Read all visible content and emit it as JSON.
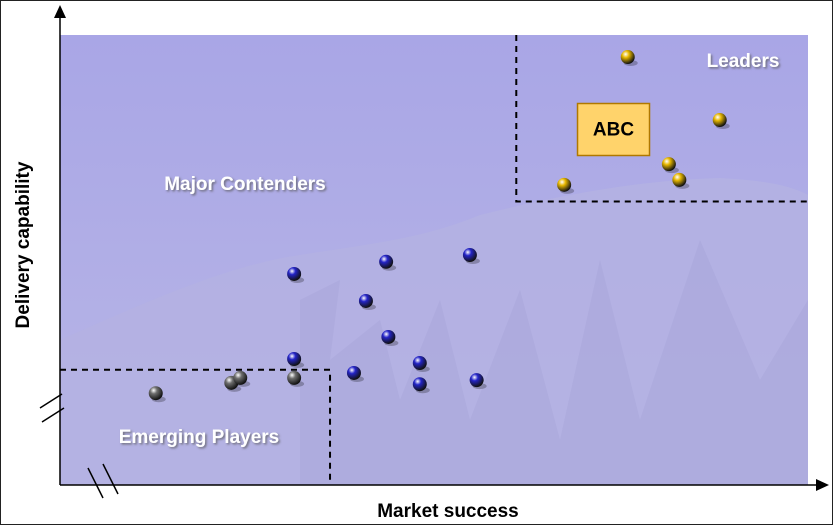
{
  "chart_data": {
    "type": "scatter",
    "xlabel": "Market success",
    "ylabel": "Delivery capability",
    "xlim": [
      0,
      100
    ],
    "ylim": [
      0,
      100
    ],
    "series": [
      {
        "name": "Leaders",
        "color": "#e8b800",
        "xrange": [
          61,
          100
        ],
        "yrange": [
          63,
          100
        ],
        "x": [
          75.9,
          88.2,
          81.4,
          82.8,
          67.4
        ],
        "values": [
          95.1,
          81.1,
          71.3,
          67.8,
          66.7
        ]
      },
      {
        "name": "Major Contenders",
        "color": "#2424c8",
        "x": [
          31.3,
          43.6,
          54.8,
          40.9,
          43.9,
          31.3,
          39.3,
          48.1,
          48.1,
          55.7
        ],
        "values": [
          46.9,
          49.6,
          51.1,
          40.9,
          32.9,
          28.0,
          24.9,
          27.1,
          22.4,
          23.3
        ]
      },
      {
        "name": "Emerging Players",
        "color": "#6e6e6e",
        "xrange": [
          0,
          36.1
        ],
        "yrange": [
          0,
          25.6
        ],
        "x": [
          12.8,
          22.9,
          24.1,
          31.3
        ],
        "values": [
          20.4,
          22.7,
          23.8,
          23.8
        ]
      }
    ],
    "annotations": [
      {
        "text": "ABC",
        "x": 74,
        "y": 79
      }
    ]
  }
}
